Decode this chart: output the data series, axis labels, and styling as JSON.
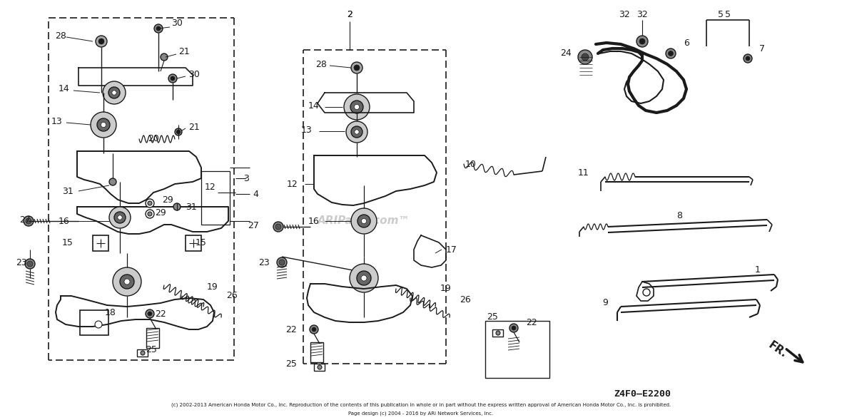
{
  "bg_color": "#ffffff",
  "line_color": "#1a1a1a",
  "copyright_text": "(c) 2002-2013 American Honda Motor Co., Inc. Reproduction of the contents of this publication in whole or in part without the express written approval of American Honda Motor Co., Inc. is prohibited.",
  "page_design_text": "Page design (c) 2004 - 2016 by ARI Network Services, Inc.",
  "part_number": "Z4F0—E2200",
  "fr_label": "FR.",
  "watermark": "ARIParts.com",
  "fig_width": 11.8,
  "fig_height": 5.89,
  "dpi": 100
}
